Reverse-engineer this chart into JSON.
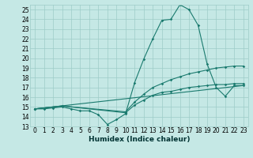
{
  "title": "",
  "xlabel": "Humidex (Indice chaleur)",
  "xlim": [
    -0.5,
    23.5
  ],
  "ylim": [
    13,
    25.5
  ],
  "yticks": [
    13,
    14,
    15,
    16,
    17,
    18,
    19,
    20,
    21,
    22,
    23,
    24,
    25
  ],
  "xticks": [
    0,
    1,
    2,
    3,
    4,
    5,
    6,
    7,
    8,
    9,
    10,
    11,
    12,
    13,
    14,
    15,
    16,
    17,
    18,
    19,
    20,
    21,
    22,
    23
  ],
  "bg_color": "#c5e8e5",
  "line_color": "#1a7a6e",
  "grid_color": "#9dccc8",
  "line1_x": [
    0,
    1,
    2,
    3,
    4,
    5,
    6,
    7,
    8,
    9,
    10,
    11,
    12,
    13,
    14,
    15,
    16,
    17,
    18,
    19,
    20,
    21,
    22,
    23
  ],
  "line1_y": [
    14.8,
    14.8,
    14.9,
    15.0,
    14.8,
    14.6,
    14.6,
    14.2,
    13.2,
    13.7,
    14.3,
    17.5,
    19.9,
    22.0,
    23.9,
    24.0,
    25.5,
    25.0,
    23.4,
    19.4,
    17.0,
    16.1,
    17.2,
    17.2
  ],
  "line2_x": [
    0,
    3,
    10,
    11,
    12,
    13,
    14,
    15,
    16,
    17,
    18,
    19,
    20,
    21,
    22,
    23
  ],
  "line2_y": [
    14.8,
    15.1,
    14.5,
    15.5,
    16.3,
    17.0,
    17.4,
    17.8,
    18.1,
    18.4,
    18.6,
    18.8,
    19.0,
    19.1,
    19.2,
    19.2
  ],
  "line3_x": [
    0,
    3,
    10,
    11,
    12,
    13,
    14,
    15,
    16,
    17,
    18,
    19,
    20,
    21,
    22,
    23
  ],
  "line3_y": [
    14.8,
    15.1,
    14.4,
    15.2,
    15.7,
    16.2,
    16.5,
    16.6,
    16.8,
    17.0,
    17.1,
    17.2,
    17.3,
    17.3,
    17.4,
    17.4
  ],
  "line4_x": [
    0,
    23
  ],
  "line4_y": [
    14.8,
    17.2
  ],
  "tick_fontsize": 5.5,
  "xlabel_fontsize": 6.5,
  "lw": 0.8,
  "ms": 1.8
}
